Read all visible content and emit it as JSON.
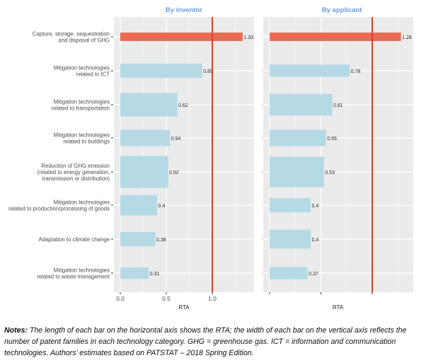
{
  "chart_data": [
    {
      "type": "bar",
      "orientation": "horizontal",
      "title": "By inventor",
      "xlabel": "RTA",
      "ylabel": "",
      "xlim": [
        -0.05,
        1.45
      ],
      "xticks": [
        0.0,
        0.5,
        1.0
      ],
      "xtick_labels": [
        "0.0",
        "0.5",
        "1.0"
      ],
      "reference_line": {
        "x": 1.0,
        "color": "#d9412b"
      },
      "grid": true,
      "categories": [
        "Capture, storage, sequestration\nand disposal of GHG",
        "Mitigation technologies\nrelated to ICT",
        "Mitigation technologies\nrelated to transportation",
        "Mitigation technologies\nrelated to buildings",
        "Reduction of GHG emission\n(related to energy generation,\ntransmission or distribution)",
        "Mitigation technologies\nrelated to production/processing of goods",
        "Adaptation to climate change",
        "Mitigation technologies\nrelated to waste management"
      ],
      "values": [
        1.33,
        0.89,
        0.62,
        0.54,
        0.52,
        0.4,
        0.38,
        0.31
      ],
      "value_labels": [
        "1.33",
        "0.89",
        "0.62",
        "0.54",
        "0.52",
        "0.4",
        "0.38",
        "0.31"
      ],
      "bar_width_relative": [
        0.25,
        0.42,
        0.7,
        0.48,
        0.95,
        0.6,
        0.42,
        0.34
      ],
      "highlight_index": 0,
      "colors": {
        "highlight": "#ea6a53",
        "default": "#b5d9e5"
      }
    },
    {
      "type": "bar",
      "orientation": "horizontal",
      "title": "By applicant",
      "xlabel": "RTA",
      "ylabel": "",
      "xlim": [
        -0.05,
        1.4
      ],
      "xticks": [
        0.0,
        0.5,
        1.0
      ],
      "xtick_labels": [
        "",
        "",
        ""
      ],
      "reference_line": {
        "x": 1.0,
        "color": "#d9412b"
      },
      "grid": true,
      "categories": [
        "Capture, storage, sequestration and disposal of GHG",
        "Mitigation technologies related to ICT",
        "Mitigation technologies related to transportation",
        "Mitigation technologies related to buildings",
        "Reduction of GHG emission (related to energy generation, transmission or distribution)",
        "Mitigation technologies related to production/processing of goods",
        "Adaptation to climate change",
        "Mitigation technologies related to waste management"
      ],
      "values": [
        1.28,
        0.78,
        0.61,
        0.55,
        0.53,
        0.4,
        0.4,
        0.37
      ],
      "value_labels": [
        "1.28",
        "0.78",
        "0.61",
        "0.55",
        "0.53",
        "0.4",
        "0.4",
        "0.37"
      ],
      "bar_width_relative": [
        0.25,
        0.36,
        0.64,
        0.48,
        0.9,
        0.42,
        0.56,
        0.36
      ],
      "highlight_index": 0,
      "colors": {
        "highlight": "#ea6a53",
        "default": "#b5d9e5"
      }
    }
  ],
  "style": {
    "panel_bg": "#ebebeb",
    "grid_major": "#ffffff",
    "title_color": "#6b9be0",
    "axis_text": "#4d4d4d"
  },
  "notes": {
    "label": "Notes:",
    "text": " The length of each bar on the horizontal axis shows the RTA; the width of each bar on the vertical axis reflects the number of patent families in each technology category. GHG = greenhouse gas. ICT = information and communication technologies. Authors’ estimates based on PATSTAT – 2018 Spring Edition."
  }
}
